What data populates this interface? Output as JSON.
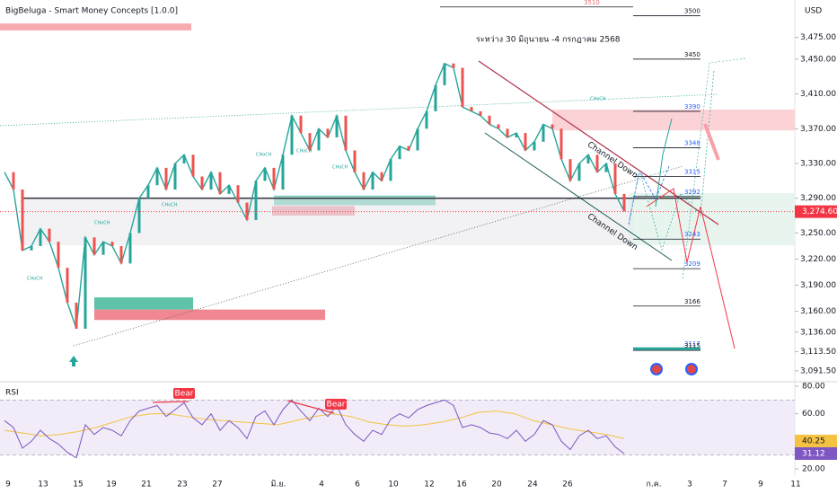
{
  "chart_data": {
    "type": "line",
    "title": "BigBeluga - Smart Money Concepts [1.0.0]",
    "currency": "USD",
    "annotation": "ระหว่าง 30 มิถุนายน -4 กรกฎาคม 2568",
    "channel_labels": [
      "Channel Down",
      "Channel Down"
    ],
    "x_labels": [
      "9",
      "13",
      "15",
      "19",
      "21",
      "23",
      "27",
      "มิ.ย.",
      "4",
      "6",
      "10",
      "12",
      "16",
      "20",
      "24",
      "26",
      "ก.ค.",
      "3",
      "7",
      "9",
      "11"
    ],
    "ylim": [
      3079,
      3518
    ],
    "yticks": [
      {
        "value": 3475,
        "label": "3,475.00"
      },
      {
        "value": 3450,
        "label": "3,450.00"
      },
      {
        "value": 3410,
        "label": "3,410.00"
      },
      {
        "value": 3370,
        "label": "3,370.00"
      },
      {
        "value": 3330,
        "label": "3,330.00"
      },
      {
        "value": 3290,
        "label": "3,290.00"
      },
      {
        "value": 3250,
        "label": "3,250.00"
      },
      {
        "value": 3220,
        "label": "3,220.00"
      },
      {
        "value": 3190,
        "label": "3,190.00"
      },
      {
        "value": 3160,
        "label": "3,160.00"
      },
      {
        "value": 3136,
        "label": "3,136.00"
      },
      {
        "value": 3113.5,
        "label": "3,113.50"
      },
      {
        "value": 3091.5,
        "label": "3,091.50"
      }
    ],
    "last_price": {
      "value": 3274.6,
      "label": "3,274.60",
      "color": "#f23645"
    },
    "series": [
      {
        "name": "XAUUSD",
        "color": "#26a69a",
        "values": [
          3320,
          3300,
          3230,
          3235,
          3255,
          3240,
          3210,
          3170,
          3140,
          3245,
          3225,
          3240,
          3235,
          3215,
          3250,
          3290,
          3305,
          3325,
          3300,
          3330,
          3340,
          3315,
          3300,
          3320,
          3295,
          3305,
          3285,
          3265,
          3310,
          3325,
          3300,
          3340,
          3385,
          3365,
          3345,
          3370,
          3360,
          3385,
          3345,
          3320,
          3300,
          3320,
          3310,
          3335,
          3350,
          3345,
          3370,
          3390,
          3420,
          3445,
          3440,
          3395,
          3390,
          3385,
          3375,
          3370,
          3360,
          3365,
          3345,
          3355,
          3375,
          3370,
          3335,
          3310,
          3330,
          3340,
          3320,
          3330,
          3295,
          3275
        ]
      }
    ],
    "levels": [
      3510,
      3500,
      3450,
      3390,
      3348,
      3315,
      3292,
      3243,
      3209,
      3166,
      3117,
      3115
    ],
    "zones": [
      {
        "lo": 3483,
        "hi": 3491,
        "color": "#f7a1a9"
      },
      {
        "lo": 3282,
        "hi": 3293,
        "color": "#4dbd9f"
      },
      {
        "lo": 3270,
        "hi": 3281,
        "color": "#ef7a85"
      },
      {
        "lo": 3162,
        "hi": 3176,
        "color": "#4dbd9f"
      },
      {
        "lo": 3150,
        "hi": 3162,
        "color": "#ef7a85"
      },
      {
        "lo": 3236,
        "hi": 3296,
        "color": "#e8f5ef"
      },
      {
        "lo": 3368,
        "hi": 3392,
        "color": "#fbd3d7"
      }
    ],
    "breakout_level": 3290,
    "choch_labels": [
      "CHoCH",
      "CHoCH",
      "CHoCH",
      "CHoCH",
      "CHoCH",
      "CHoCH",
      "CHoCH"
    ],
    "rsi": {
      "label": "RSI",
      "ylim": [
        17.4,
        81.3
      ],
      "yticks": [
        {
          "value": 80,
          "label": "80.00"
        },
        {
          "value": 60,
          "label": "60.00"
        },
        {
          "value": 20,
          "label": "20.00"
        }
      ],
      "band": [
        30,
        70
      ],
      "values": [
        55,
        50,
        35,
        40,
        48,
        42,
        38,
        32,
        28,
        52,
        45,
        50,
        48,
        44,
        55,
        62,
        64,
        66,
        58,
        63,
        68,
        57,
        52,
        60,
        48,
        55,
        50,
        42,
        58,
        62,
        52,
        63,
        70,
        62,
        55,
        64,
        58,
        66,
        52,
        45,
        40,
        48,
        45,
        56,
        60,
        57,
        63,
        66,
        68,
        70,
        66,
        50,
        52,
        50,
        46,
        45,
        42,
        48,
        40,
        45,
        55,
        52,
        40,
        34,
        44,
        48,
        42,
        44,
        36,
        31.12
      ],
      "ma": [
        48,
        46,
        44,
        45,
        47,
        50,
        54,
        58,
        60,
        60,
        58,
        56,
        55,
        54,
        53,
        52,
        55,
        58,
        60,
        58,
        54,
        52,
        51,
        52,
        54,
        57,
        61,
        62,
        60,
        55,
        52,
        49,
        47,
        45,
        42
      ],
      "ma_value": {
        "value": 40.25,
        "label": "40.25"
      },
      "rsi_value": {
        "value": 31.12,
        "label": "31.12"
      },
      "signals": [
        "Bear",
        "Bear"
      ]
    }
  }
}
